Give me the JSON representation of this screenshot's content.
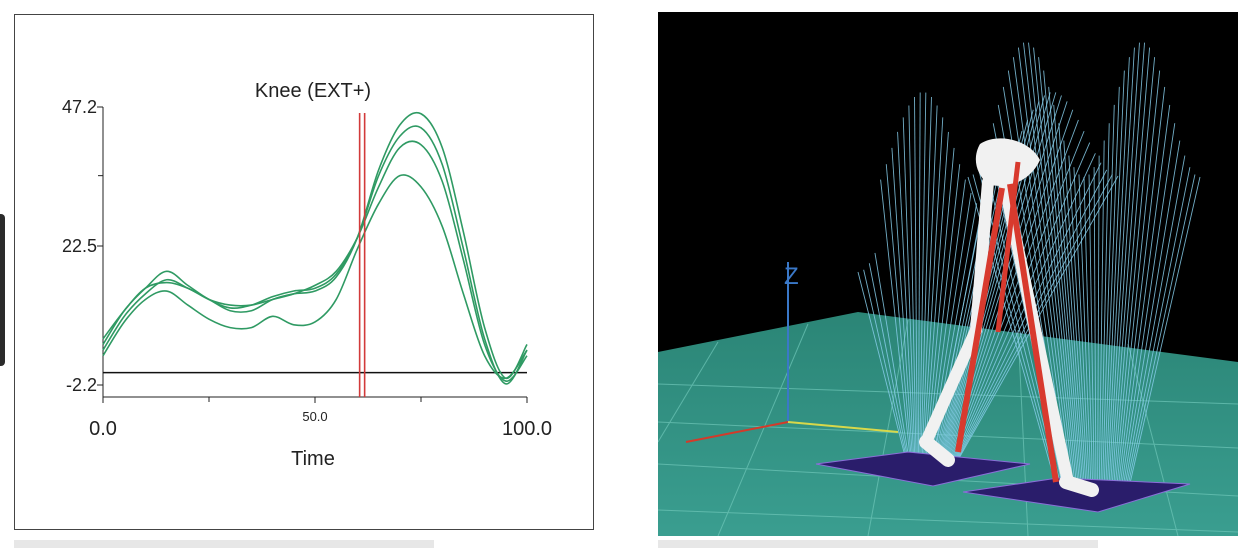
{
  "chart_data": {
    "type": "line",
    "title": "Knee (EXT+)",
    "xlabel": "Time",
    "ylabel": "",
    "xlim": [
      0,
      100
    ],
    "ylim": [
      -2.2,
      47.2
    ],
    "x_ticks": [
      {
        "value": 0,
        "label": "0.0"
      },
      {
        "value": 50,
        "label": "50.0"
      },
      {
        "value": 100,
        "label": "100.0"
      }
    ],
    "y_ticks": [
      {
        "value": 47.2,
        "label": "47.2"
      },
      {
        "value": 22.5,
        "label": "22.5"
      },
      {
        "value": -2.2,
        "label": "-2.2"
      }
    ],
    "marker_x": 61,
    "line_color": "#2f9a63",
    "marker_color": "#d23a3a",
    "series": [
      {
        "x": [
          0,
          5,
          10,
          15,
          20,
          25,
          30,
          35,
          40,
          45,
          50,
          55,
          60,
          65,
          70,
          75,
          80,
          85,
          90,
          95,
          100
        ],
        "values": [
          4,
          10,
          14,
          16.5,
          15,
          13,
          11,
          11,
          13,
          14,
          14.5,
          17,
          24,
          36,
          44,
          46,
          40,
          25,
          8,
          -1,
          5
        ]
      },
      {
        "x": [
          0,
          5,
          10,
          15,
          20,
          25,
          30,
          35,
          40,
          45,
          50,
          55,
          60,
          65,
          70,
          75,
          80,
          85,
          90,
          95,
          100
        ],
        "values": [
          5,
          11,
          15,
          18,
          15.5,
          13,
          11.5,
          12,
          13.5,
          14.5,
          15,
          17.5,
          24,
          35,
          42,
          43.5,
          37,
          22,
          6,
          -2,
          4
        ]
      },
      {
        "x": [
          0,
          5,
          10,
          15,
          20,
          25,
          30,
          35,
          40,
          45,
          50,
          55,
          60,
          65,
          70,
          75,
          80,
          85,
          90,
          95,
          100
        ],
        "values": [
          6,
          11,
          15,
          16,
          15,
          13,
          12,
          12,
          13,
          14,
          15.5,
          18,
          24,
          33,
          40,
          40.5,
          34,
          20,
          5,
          -1.5,
          3
        ]
      },
      {
        "x": [
          0,
          5,
          10,
          15,
          20,
          25,
          30,
          35,
          40,
          45,
          50,
          55,
          60,
          65,
          70,
          75,
          80,
          85,
          90,
          95,
          100
        ],
        "values": [
          3,
          9,
          13,
          14.5,
          12,
          9.5,
          8,
          8,
          10,
          8.5,
          9,
          13,
          22,
          30,
          35,
          33,
          26,
          14,
          3,
          -1,
          4
        ]
      }
    ]
  },
  "scene": {
    "axis_label_z": "Z",
    "colors": {
      "background": "#000000",
      "floor": "#2e8f82",
      "grid": "#6fc7b9",
      "force_lines": "#87cdea",
      "bones": "#f1f1f1",
      "muscles": "#d83a2e",
      "plates": "#2a1d6b"
    }
  }
}
